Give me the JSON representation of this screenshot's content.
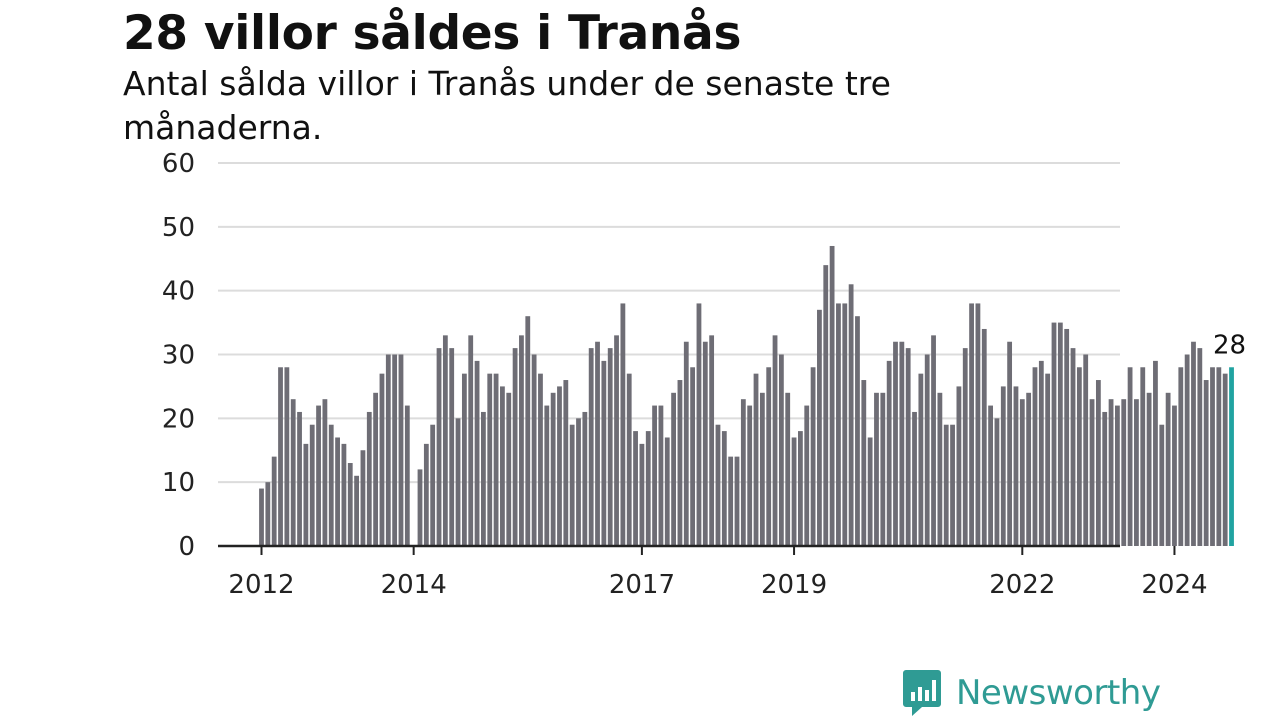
{
  "title": "28 villor såldes i Tranås",
  "subtitle": "Antal sålda villor i Tranås under de senaste tre månaderna.",
  "brand": {
    "name": "Newsworthy",
    "color": "#2f9b94",
    "icon": "bar-chart-speech-bubble-icon"
  },
  "colors": {
    "bar": "#6e6d75",
    "highlight": "#21a3a1",
    "grid": "#dcdcdc",
    "axis": "#222222"
  },
  "chart_data": {
    "type": "bar",
    "title": "28 villor såldes i Tranås",
    "xlabel": "",
    "ylabel": "",
    "ylim": [
      0,
      60
    ],
    "yticks": [
      0,
      10,
      20,
      30,
      40,
      50,
      60
    ],
    "xticks": [
      "2012",
      "2014",
      "2017",
      "2019",
      "2022",
      "2024"
    ],
    "grid": true,
    "legend": "none",
    "bar_unit": "rolling three-month total, one bar per month",
    "first_month": "2012-01",
    "values": [
      9,
      10,
      14,
      28,
      28,
      23,
      21,
      16,
      19,
      22,
      23,
      19,
      17,
      16,
      13,
      11,
      15,
      21,
      24,
      27,
      30,
      30,
      30,
      22,
      null,
      12,
      16,
      19,
      31,
      33,
      31,
      20,
      27,
      33,
      29,
      21,
      27,
      27,
      25,
      24,
      31,
      33,
      36,
      30,
      27,
      22,
      24,
      25,
      26,
      19,
      20,
      21,
      31,
      32,
      29,
      31,
      33,
      38,
      27,
      18,
      16,
      18,
      22,
      22,
      17,
      24,
      26,
      32,
      28,
      38,
      32,
      33,
      19,
      18,
      14,
      14,
      23,
      22,
      27,
      24,
      28,
      33,
      30,
      24,
      17,
      18,
      22,
      28,
      37,
      44,
      47,
      38,
      38,
      41,
      36,
      26,
      17,
      24,
      24,
      29,
      32,
      32,
      31,
      21,
      27,
      30,
      33,
      24,
      19,
      19,
      25,
      31,
      38,
      38,
      34,
      22,
      20,
      25,
      32,
      25,
      23,
      24,
      28,
      29,
      27,
      35,
      35,
      34,
      31,
      28,
      30,
      23,
      26,
      21,
      23,
      22,
      23,
      28,
      23,
      28,
      24,
      29,
      19,
      24,
      22,
      28,
      30,
      32,
      31,
      26,
      28,
      28,
      27,
      28
    ],
    "highlight_last": true,
    "last_value_label": "28"
  }
}
